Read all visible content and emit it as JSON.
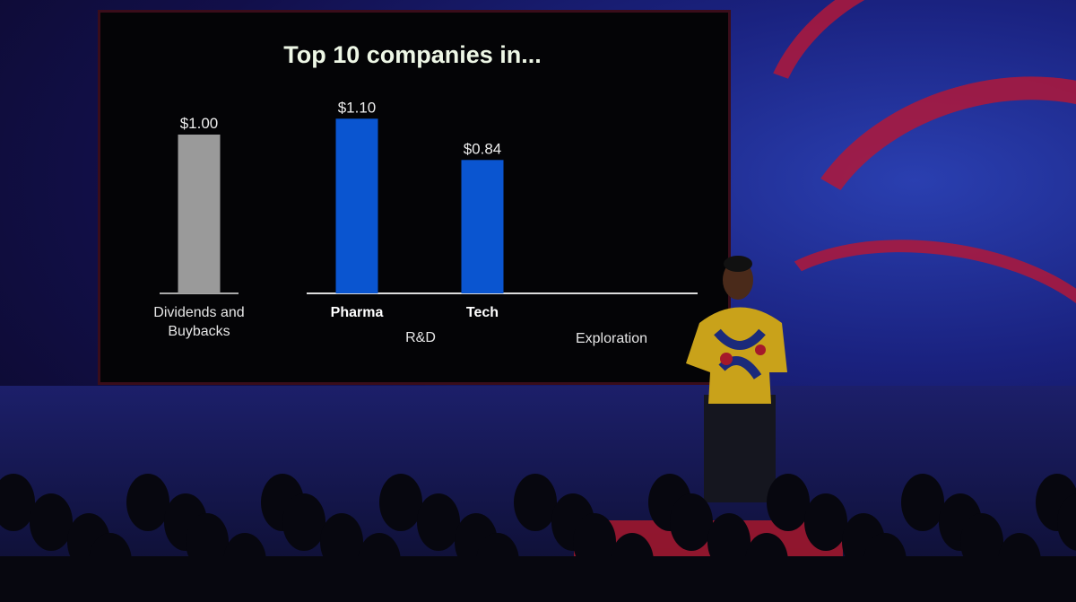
{
  "chart_data": {
    "type": "bar",
    "title": "Top 10 companies in...",
    "groups": [
      {
        "label": "Dividends and Buybacks",
        "bars": [
          {
            "category": "",
            "value": 1.0,
            "value_label": "$1.00",
            "color": "#9a9a9a"
          }
        ]
      },
      {
        "label": "R&D",
        "bars": [
          {
            "category": "Pharma",
            "value": 1.1,
            "value_label": "$1.10",
            "color": "#0a55d0"
          },
          {
            "category": "Tech",
            "value": 0.84,
            "value_label": "$0.84",
            "color": "#0a55d0"
          }
        ]
      },
      {
        "label": "Exploration",
        "bars": []
      }
    ],
    "xlabel": "",
    "ylabel": "",
    "grid": false
  },
  "colors": {
    "background": "#040406",
    "gray_bar": "#9a9a9a",
    "blue_bar": "#0a55d0",
    "title": "#eef7e6"
  }
}
